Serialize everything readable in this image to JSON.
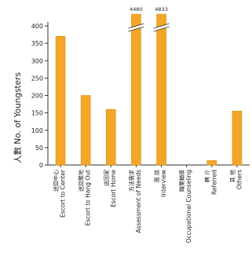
{
  "chart_data": {
    "type": "bar",
    "ylabel": "人數 No. of Youngsters",
    "ylim": [
      0,
      400
    ],
    "yticks": [
      0,
      50,
      100,
      150,
      200,
      250,
      300,
      350,
      400
    ],
    "grid": false,
    "bar_color": "#F2A72B",
    "bar_edge_color": "#D98E12",
    "categories": [
      {
        "zh": "送回中心",
        "en": "Escort to Center",
        "value": 370
      },
      {
        "zh": "送回聚地",
        "en": "Escort to Hang Out",
        "value": 200
      },
      {
        "zh": "送回家",
        "en": "Escort Home",
        "value": 160
      },
      {
        "zh": "方法需求",
        "en": "Assessment of Needs",
        "value": 4480,
        "label": "4480",
        "broken": true
      },
      {
        "zh": "面 談",
        "en": "Interview",
        "value": 4833,
        "label": "4833",
        "broken": true
      },
      {
        "zh": "職業輔導",
        "en": "Occupational Counseling",
        "value": 0
      },
      {
        "zh": "轉 介",
        "en": "Referred",
        "value": 13
      },
      {
        "zh": "其 他",
        "en": "Others",
        "value": 155
      }
    ]
  }
}
